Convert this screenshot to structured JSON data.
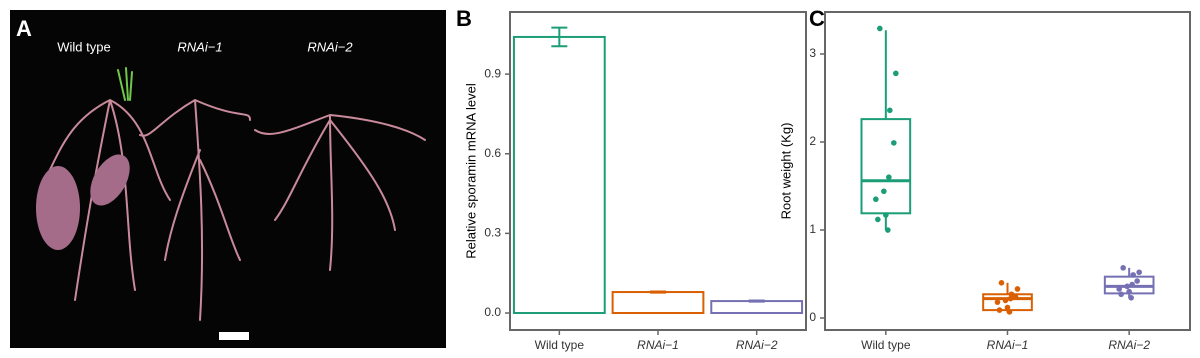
{
  "photo": {
    "panel_label": "A",
    "labels": [
      "Wild type",
      "RNAi−1",
      "RNAi−2"
    ]
  },
  "chart_data": [
    {
      "type": "bar",
      "panel_label": "B",
      "ylabel": "Relative sporamin mRNA level",
      "categories": [
        "Wild type",
        "RNAi−1",
        "RNAi−2"
      ],
      "values": [
        1.04,
        0.079,
        0.045
      ],
      "errors": [
        0.035,
        0.002,
        0.002
      ],
      "colors": [
        "#1b9e77",
        "#d95f02",
        "#7570b3"
      ],
      "ylim": [
        -0.064,
        1.134
      ],
      "yticks": [
        {
          "value": 0,
          "label": "0.0"
        },
        0.3,
        0.6,
        0.9
      ]
    },
    {
      "type": "box",
      "panel_label": "C",
      "ylabel": "Root weight (Kg)",
      "categories": [
        "Wild type",
        "RNAi−1",
        "RNAi−2"
      ],
      "colors": [
        "#1b9e77",
        "#d95f02",
        "#7570b3"
      ],
      "boxes": [
        {
          "whisker_low": 1.0,
          "q1": 1.19,
          "median": 1.56,
          "q3": 2.26,
          "whisker_high": 3.27,
          "points": [
            3.29,
            2.78,
            2.36,
            1.99,
            1.6,
            1.44,
            1.35,
            1.17,
            1.12,
            1.0
          ]
        },
        {
          "whisker_low": 0.06,
          "q1": 0.09,
          "median": 0.22,
          "q3": 0.27,
          "whisker_high": 0.4,
          "points": [
            0.4,
            0.33,
            0.27,
            0.24,
            0.22,
            0.2,
            0.18,
            0.12,
            0.09,
            0.07
          ]
        },
        {
          "whisker_low": 0.23,
          "q1": 0.28,
          "median": 0.36,
          "q3": 0.47,
          "whisker_high": 0.57,
          "points": [
            0.57,
            0.52,
            0.49,
            0.42,
            0.38,
            0.36,
            0.33,
            0.3,
            0.27,
            0.23
          ]
        }
      ],
      "ylim": [
        -0.136,
        3.477
      ],
      "yticks": [
        0,
        1,
        2,
        3
      ]
    }
  ]
}
